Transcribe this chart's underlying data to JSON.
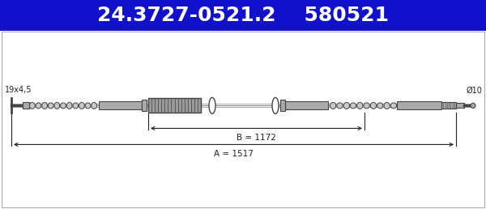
{
  "title1": "24.3727-0521.2",
  "title2": "580521",
  "header_bg": "#1111CC",
  "header_text_color": "#FFFFFF",
  "body_bg": "#FFFFFF",
  "cable_color": "#777777",
  "part_color": "#AAAAAA",
  "part_dark": "#444444",
  "line_color": "#222222",
  "dim_color": "#222222",
  "label_left": "19x4,5",
  "label_right": "Ø10",
  "dim_B_label": "B = 1172",
  "dim_A_label": "A = 1517",
  "fig_width": 6.0,
  "fig_height": 2.58,
  "dpi": 100
}
